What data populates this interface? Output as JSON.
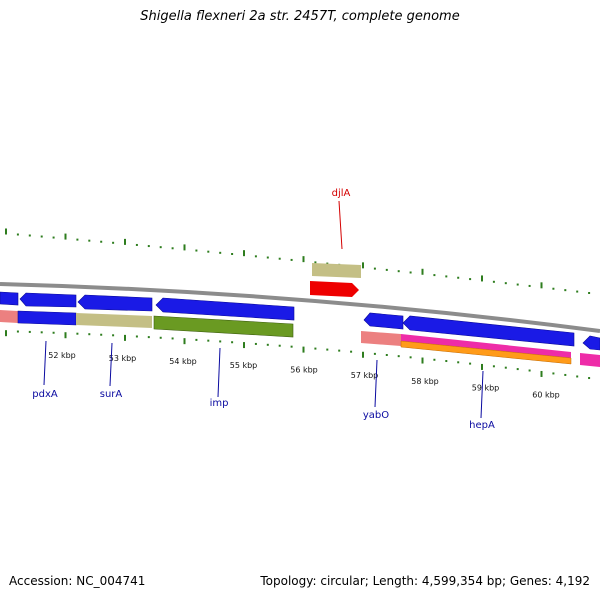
{
  "title": "Shigella flexneri 2a str. 2457T, complete genome",
  "footer": {
    "accession_label": "Accession: NC_004741",
    "summary": "Topology: circular; Length: 4,599,354 bp; Genes: 4,192"
  },
  "colors": {
    "backbone": "#8c8c8c",
    "tick": "#2e7d1e",
    "gene_label": "#0a0aa0",
    "highlight_label": "#d40000",
    "blue": "#1a1ae6",
    "olive": "#c4bf85",
    "green": "#6a9a22",
    "salmon": "#ec8080",
    "magenta": "#ee2ca8",
    "orange": "#ff9b19",
    "red": "#ee0000"
  },
  "scale_labels": [
    {
      "text": "52 kbp",
      "kbp": 52
    },
    {
      "text": "53 kbp",
      "kbp": 53
    },
    {
      "text": "54 kbp",
      "kbp": 54
    },
    {
      "text": "55 kbp",
      "kbp": 55
    },
    {
      "text": "56 kbp",
      "kbp": 56
    },
    {
      "text": "57 kbp",
      "kbp": 57
    },
    {
      "text": "58 kbp",
      "kbp": 58
    },
    {
      "text": "59 kbp",
      "kbp": 59
    },
    {
      "text": "60 kbp",
      "kbp": 60
    }
  ],
  "gene_labels": [
    {
      "text": "pdxA",
      "kbp": 52.0
    },
    {
      "text": "surA",
      "kbp": 53.1
    },
    {
      "text": "imp",
      "kbp": 54.8
    },
    {
      "text": "djlA",
      "kbp": 56.7
    },
    {
      "text": "yabO",
      "kbp": 57.2
    },
    {
      "text": "hepA",
      "kbp": 59.4
    }
  ]
}
